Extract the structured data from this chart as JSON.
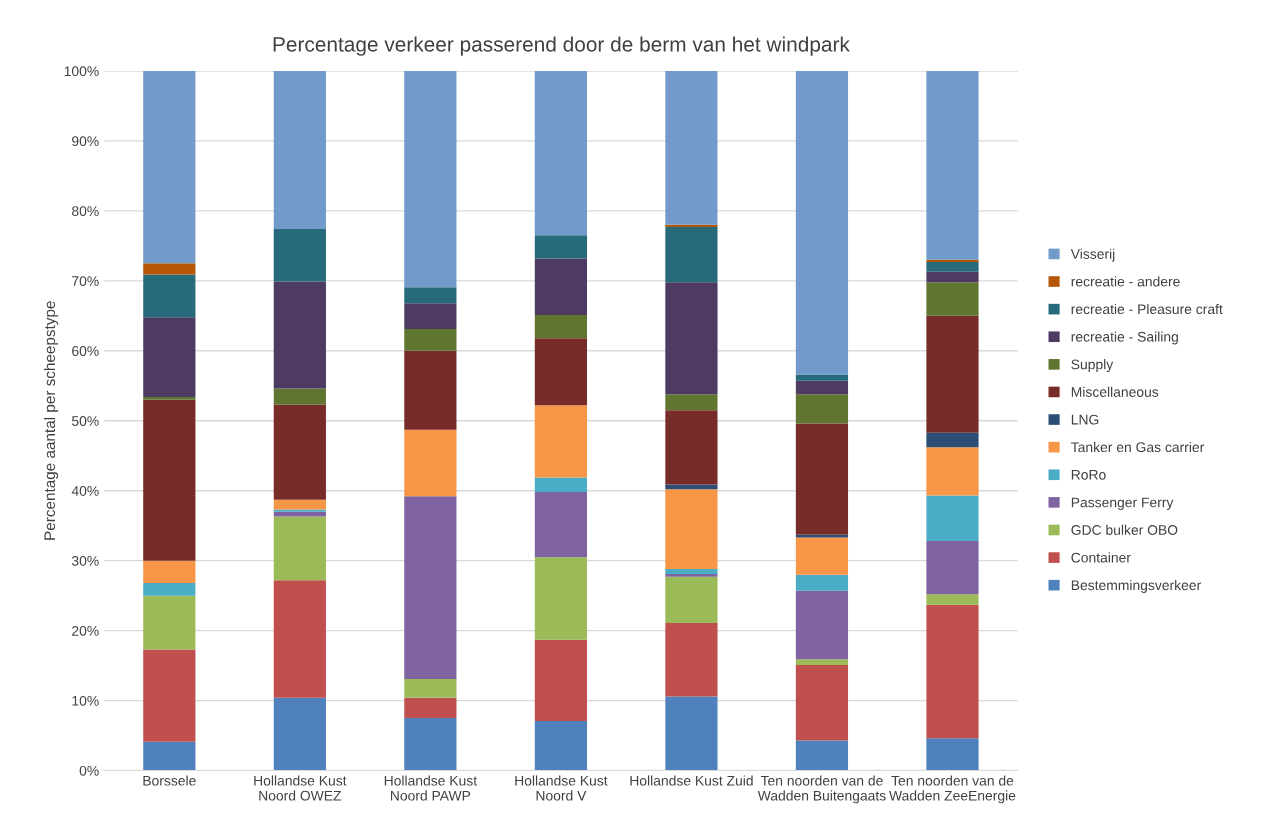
{
  "chart_data": {
    "type": "bar",
    "stacked": true,
    "title": "Percentage verkeer passerend door de berm van het windpark",
    "ylabel": "Percentage aantal per scheepstype",
    "categories": [
      "Borssele",
      "Hollandse Kust\nNoord OWEZ",
      "Hollandse Kust\nNoord PAWP",
      "Hollandse Kust\nNoord V",
      "Hollandse Kust Zuid",
      "Ten noorden van de\nWadden Buitengaats",
      "Ten noorden van de\nWadden ZeeEnergie"
    ],
    "series": [
      {
        "name": "Bestemmingsverkeer",
        "color": "#4f81bd",
        "values": [
          4.1,
          10.4,
          7.5,
          7.1,
          10.6,
          4.3,
          4.6
        ]
      },
      {
        "name": "Container",
        "color": "#c0504d",
        "values": [
          13.2,
          16.8,
          2.9,
          11.6,
          10.5,
          10.8,
          19.1
        ]
      },
      {
        "name": "GDC bulker OBO",
        "color": "#9bbb59",
        "values": [
          7.7,
          9.1,
          2.7,
          11.8,
          6.6,
          0.8,
          1.5
        ]
      },
      {
        "name": "Passenger Ferry",
        "color": "#8064a2",
        "values": [
          0,
          0.7,
          26.1,
          9.3,
          0.4,
          9.8,
          7.6
        ]
      },
      {
        "name": "RoRo",
        "color": "#4bacc6",
        "values": [
          1.8,
          0.3,
          0,
          2.1,
          0.7,
          2.3,
          6.5
        ]
      },
      {
        "name": "Tanker en Gas carrier",
        "color": "#f79646",
        "values": [
          3.2,
          1.4,
          9.5,
          10.3,
          11.4,
          5.3,
          6.9
        ]
      },
      {
        "name": "LNG",
        "color": "#2c4d75",
        "values": [
          0,
          0,
          0,
          0,
          0.7,
          0.4,
          2.1
        ]
      },
      {
        "name": "Miscellaneous",
        "color": "#772c2a",
        "values": [
          23.0,
          13.6,
          11.3,
          9.6,
          10.6,
          15.9,
          16.7
        ]
      },
      {
        "name": "Supply",
        "color": "#5f7530",
        "values": [
          0.4,
          2.3,
          3.1,
          3.3,
          2.3,
          4.2,
          4.8
        ]
      },
      {
        "name": "recreatie - Sailing",
        "color": "#4d3b62",
        "values": [
          11.4,
          15.3,
          3.7,
          8.1,
          16.0,
          1.9,
          1.5
        ]
      },
      {
        "name": "recreatie - Pleasure craft",
        "color": "#276a7c",
        "values": [
          6.1,
          7.5,
          2.3,
          3.3,
          7.9,
          0.9,
          1.4
        ]
      },
      {
        "name": "recreatie - andere",
        "color": "#b65708",
        "values": [
          1.6,
          0,
          0,
          0,
          0.3,
          0,
          0.3
        ]
      },
      {
        "name": "Visserij",
        "color": "#729aca",
        "values": [
          27.5,
          22.6,
          30.9,
          23.5,
          22.0,
          43.4,
          27.0
        ]
      }
    ],
    "ylim": [
      0,
      100
    ],
    "yticks": [
      {
        "value": 0,
        "label": "0%"
      },
      {
        "value": 10,
        "label": "10%"
      },
      {
        "value": 20,
        "label": "20%"
      },
      {
        "value": 30,
        "label": "30%"
      },
      {
        "value": 40,
        "label": "40%"
      },
      {
        "value": 50,
        "label": "50%"
      },
      {
        "value": 60,
        "label": "60%"
      },
      {
        "value": 70,
        "label": "70%"
      },
      {
        "value": 80,
        "label": "80%"
      },
      {
        "value": 90,
        "label": "90%"
      },
      {
        "value": 100,
        "label": "100%"
      }
    ],
    "grid": "y",
    "legend": "right"
  }
}
